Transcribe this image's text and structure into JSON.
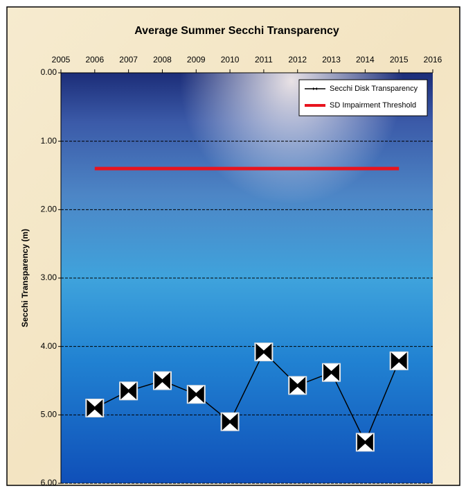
{
  "chart_data": {
    "type": "line",
    "title": "Average Summer Secchi Transparency",
    "y_label": "Secchi Transparency (m)",
    "xlim": [
      2005,
      2016
    ],
    "xticks": [
      2005,
      2006,
      2007,
      2008,
      2009,
      2010,
      2011,
      2012,
      2013,
      2014,
      2015,
      2016
    ],
    "ylim": [
      0,
      6
    ],
    "y_reversed": true,
    "yticks": [
      {
        "value": 0,
        "label": "0.00"
      },
      {
        "value": 1,
        "label": "1.00"
      },
      {
        "value": 2,
        "label": "2.00"
      },
      {
        "value": 3,
        "label": "3.00"
      },
      {
        "value": 4,
        "label": "4.00"
      },
      {
        "value": 5,
        "label": "5.00"
      },
      {
        "value": 6,
        "label": "6.00"
      }
    ],
    "grid": true,
    "legend": "top-right",
    "series": [
      {
        "name": "Secchi Disk Transparency",
        "color": "#000000",
        "marker": "bowtie",
        "x": [
          2006,
          2007,
          2008,
          2009,
          2010,
          2011,
          2012,
          2013,
          2014,
          2015
        ],
        "values": [
          4.9,
          4.65,
          4.5,
          4.7,
          5.1,
          4.08,
          4.57,
          4.38,
          5.4,
          4.21
        ]
      },
      {
        "name": "SD Impairment Threshold",
        "color": "#e8141e",
        "x": [
          2006,
          2015
        ],
        "values": [
          1.4,
          1.4
        ]
      }
    ]
  }
}
